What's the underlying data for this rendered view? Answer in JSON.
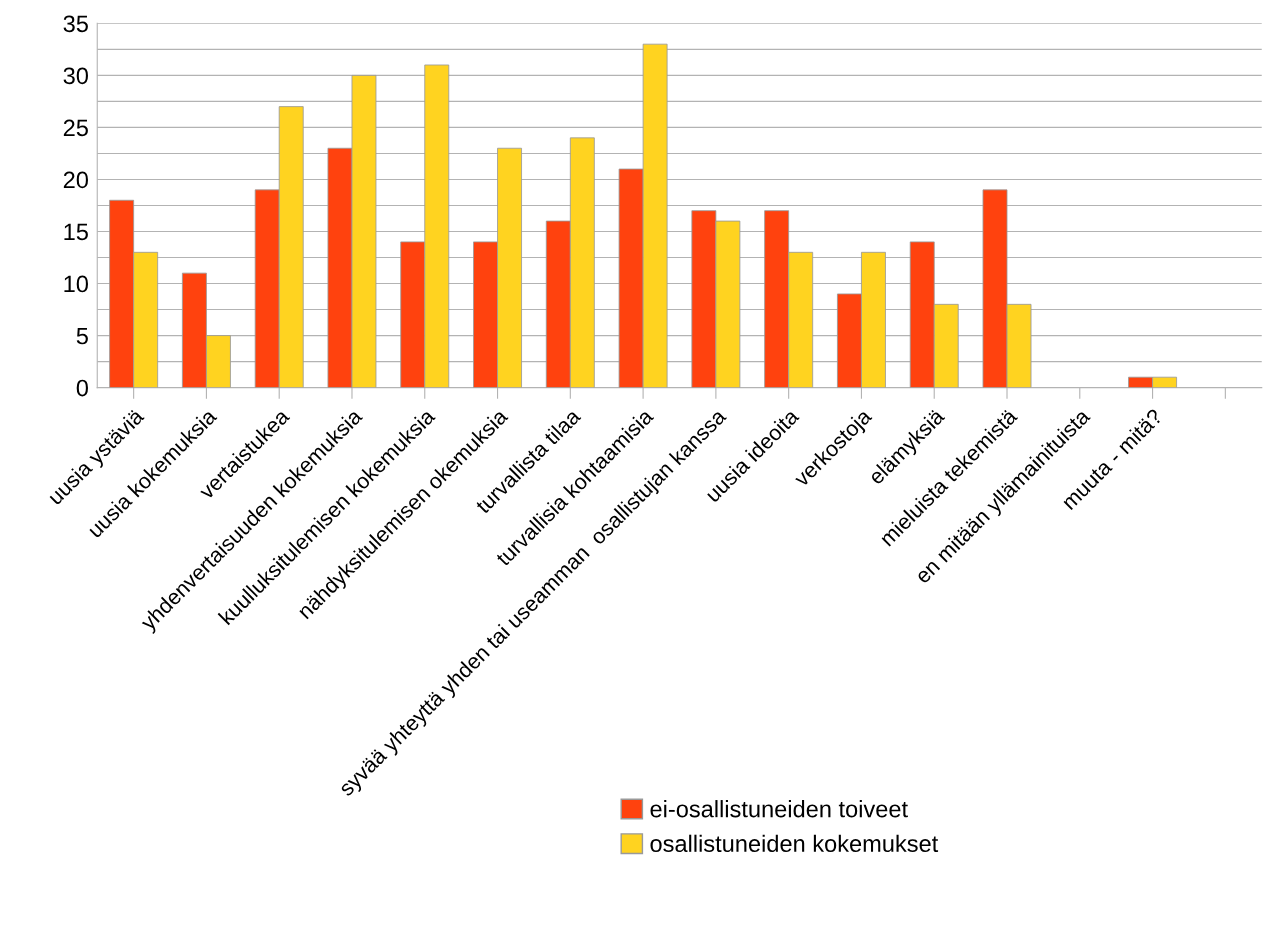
{
  "chart_data": {
    "type": "bar",
    "categories": [
      "uusia ystäviä",
      "uusia kokemuksia",
      "vertaistukea",
      "yhdenvertaisuuden kokemuksia",
      "kuulluksitulemisen kokemuksia",
      "nähdyksitulemisen okemuksia",
      "turvallista tilaa",
      "turvallisia kohtaamisia",
      "syvää yhteyttä yhden tai useamman  osallistujan kanssa",
      "uusia ideoita",
      "verkostoja",
      "elämyksiä",
      "mieluista tekemistä",
      "en mitään yllämainituista",
      "muuta - mitä?",
      null
    ],
    "series": [
      {
        "name": "ei-osallistuneiden toiveet",
        "color": "#ff420e",
        "values": [
          18,
          11,
          19,
          23,
          14,
          14,
          16,
          21,
          17,
          17,
          9,
          14,
          19,
          0,
          1,
          null
        ]
      },
      {
        "name": "osallistuneiden kokemukset",
        "color": "#ffd320",
        "values": [
          13,
          5,
          27,
          30,
          31,
          23,
          24,
          33,
          16,
          13,
          13,
          8,
          8,
          0,
          1,
          null
        ]
      }
    ],
    "ylim": [
      0,
      35
    ],
    "yticks": [
      0,
      {
        "value": 2.5,
        "label": null
      },
      5,
      {
        "value": 7.5,
        "label": null
      },
      10,
      {
        "value": 12.5,
        "label": null
      },
      15,
      {
        "value": 17.5,
        "label": null
      },
      20,
      {
        "value": 22.5,
        "label": null
      },
      25,
      {
        "value": 27.5,
        "label": null
      },
      30,
      {
        "value": 32.5,
        "label": null
      },
      35
    ],
    "grid": "y",
    "legend": "bottom right"
  }
}
